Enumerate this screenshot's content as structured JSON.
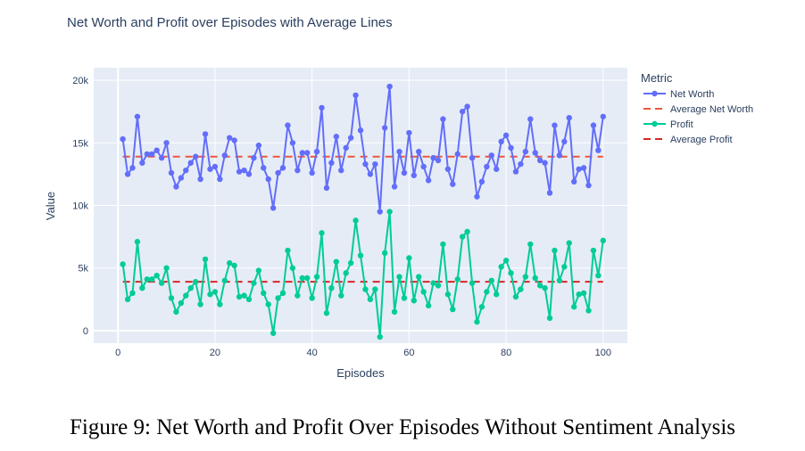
{
  "chart_data": {
    "type": "line",
    "title": "Net Worth and Profit over Episodes with Average Lines",
    "xlabel": "Episodes",
    "ylabel": "Value",
    "xlim": [
      -5,
      105
    ],
    "ylim": [
      -1000,
      21000
    ],
    "x_ticks": [
      0,
      20,
      40,
      60,
      80,
      100
    ],
    "x_tick_labels": [
      "0",
      "20",
      "40",
      "60",
      "80",
      "100"
    ],
    "y_ticks": [
      0,
      5000,
      10000,
      15000,
      20000
    ],
    "y_tick_labels": [
      "0",
      "5k",
      "10k",
      "15k",
      "20k"
    ],
    "grid": true,
    "legend_title": "Metric",
    "legend_position": "right",
    "x": [
      1,
      2,
      3,
      4,
      5,
      6,
      7,
      8,
      9,
      10,
      11,
      12,
      13,
      14,
      15,
      16,
      17,
      18,
      19,
      20,
      21,
      22,
      23,
      24,
      25,
      26,
      27,
      28,
      29,
      30,
      31,
      32,
      33,
      34,
      35,
      36,
      37,
      38,
      39,
      40,
      41,
      42,
      43,
      44,
      45,
      46,
      47,
      48,
      49,
      50,
      51,
      52,
      53,
      54,
      55,
      56,
      57,
      58,
      59,
      60,
      61,
      62,
      63,
      64,
      65,
      66,
      67,
      68,
      69,
      70,
      71,
      72,
      73,
      74,
      75,
      76,
      77,
      78,
      79,
      80,
      81,
      82,
      83,
      84,
      85,
      86,
      87,
      88,
      89,
      90,
      91,
      92,
      93,
      94,
      95,
      96,
      97,
      98,
      99,
      100
    ],
    "series": [
      {
        "name": "Net Worth",
        "style": "lines+markers",
        "color": "#636efa",
        "values": [
          15300,
          12500,
          13000,
          17100,
          13400,
          14100,
          14100,
          14400,
          13800,
          15000,
          12600,
          11500,
          12200,
          12800,
          13400,
          13900,
          12100,
          15700,
          12900,
          13100,
          12100,
          14000,
          15400,
          15200,
          12700,
          12800,
          12500,
          13800,
          14800,
          13000,
          12100,
          9800,
          12600,
          13000,
          16400,
          15000,
          12800,
          14200,
          14200,
          12600,
          14300,
          17800,
          11400,
          13400,
          15500,
          12800,
          14600,
          15400,
          18800,
          16000,
          13300,
          12500,
          13300,
          9500,
          16200,
          19500,
          11500,
          14300,
          12600,
          15800,
          12400,
          14300,
          13100,
          12000,
          13800,
          13600,
          16900,
          12900,
          11700,
          14100,
          17500,
          17900,
          13800,
          10700,
          11900,
          13100,
          14000,
          12900,
          15100,
          15600,
          14600,
          12700,
          13300,
          14300,
          16900,
          14200,
          13600,
          13400,
          11000,
          16400,
          14000,
          15100,
          17000,
          11900,
          12900,
          13000,
          11600,
          16400,
          14400,
          17100
        ]
      },
      {
        "name": "Average Net Worth",
        "style": "dash",
        "color": "#ef553b",
        "values": [
          13900,
          13900
        ],
        "x": [
          1,
          100
        ]
      },
      {
        "name": "Profit",
        "style": "lines+markers",
        "color": "#00cc96",
        "values": [
          5300,
          2500,
          3000,
          7100,
          3400,
          4100,
          4100,
          4400,
          3800,
          5000,
          2600,
          1500,
          2200,
          2800,
          3400,
          3900,
          2100,
          5700,
          2900,
          3100,
          2100,
          4000,
          5400,
          5200,
          2700,
          2800,
          2500,
          3800,
          4800,
          3000,
          2100,
          -200,
          2600,
          3000,
          6400,
          5000,
          2800,
          4200,
          4200,
          2600,
          4300,
          7800,
          1400,
          3400,
          5500,
          2800,
          4600,
          5400,
          8800,
          6000,
          3300,
          2500,
          3300,
          -500,
          6200,
          9500,
          1500,
          4300,
          2600,
          5800,
          2400,
          4300,
          3100,
          2000,
          3800,
          3600,
          6900,
          2900,
          1700,
          4100,
          7500,
          7900,
          3800,
          700,
          1900,
          3100,
          4000,
          2900,
          5100,
          5600,
          4600,
          2700,
          3300,
          4300,
          6900,
          4200,
          3600,
          3400,
          1000,
          6400,
          4000,
          5100,
          7000,
          1900,
          2900,
          3000,
          1600,
          6400,
          4400,
          7200
        ]
      },
      {
        "name": "Average Profit",
        "style": "dash",
        "color": "#d62728",
        "values": [
          3900,
          3900
        ],
        "x": [
          1,
          100
        ]
      }
    ]
  },
  "caption": "Figure 9: Net Worth and Profit Over Episodes Without Sentiment Analysis"
}
